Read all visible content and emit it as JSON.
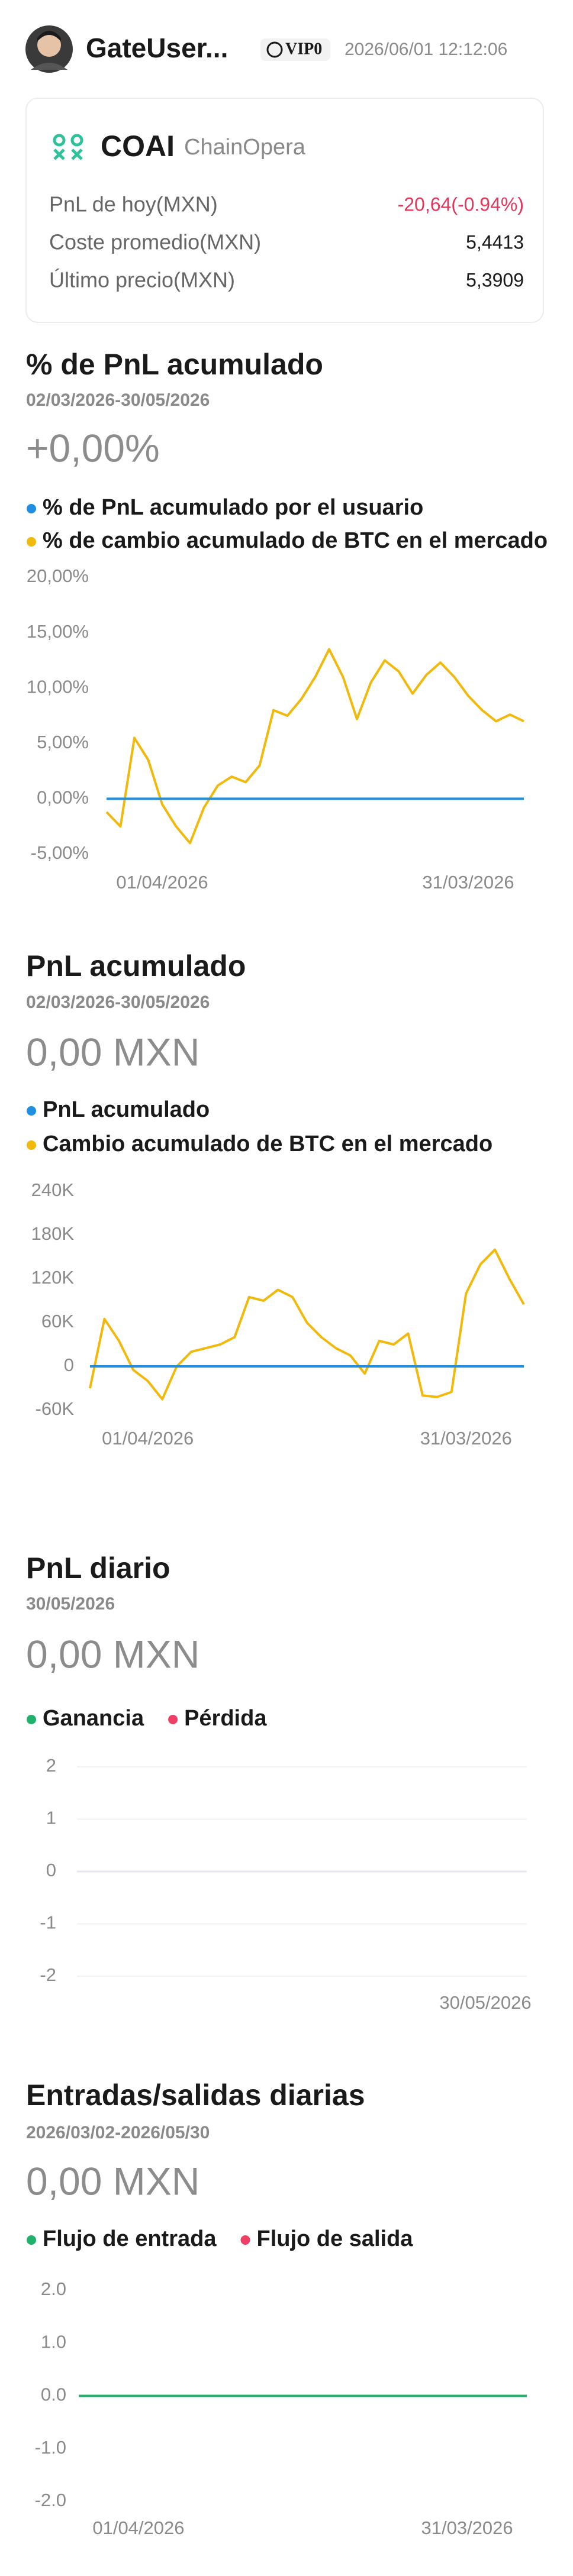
{
  "header": {
    "username": "GateUser...",
    "vip": "VIP0",
    "datetime": "2026/06/01 12:12:06"
  },
  "asset": {
    "symbol": "COAI",
    "name": "ChainOpera",
    "rows": [
      {
        "label": "PnL de hoy(MXN)",
        "value": "-20,64(-0.94%)"
      },
      {
        "label": "Coste promedio(MXN)",
        "value": "5,4413"
      },
      {
        "label": "Último precio(MXN)",
        "value": "5,3909"
      }
    ]
  },
  "chart_data": [
    {
      "type": "line",
      "title": "% de PnL acumulado",
      "subtitle": "02/03/2026-30/05/2026",
      "summary": "+0,00%",
      "categories": [
        null,
        null,
        null,
        null,
        "01/04/2026",
        null,
        null,
        null,
        null,
        null,
        null,
        null,
        null,
        null,
        null,
        null,
        null,
        null,
        null,
        null,
        null,
        null,
        null,
        null,
        null,
        null,
        "31/03/2026",
        null,
        null,
        null,
        null
      ],
      "series": [
        {
          "name": "% de PnL acumulado por el usuario",
          "color": "#1e8fe1",
          "values": [
            0,
            0,
            0,
            0,
            0,
            0,
            0,
            0,
            0,
            0,
            0,
            0,
            0,
            0,
            0,
            0,
            0,
            0,
            0,
            0,
            0,
            0,
            0,
            0,
            0,
            0,
            0,
            0,
            0,
            0,
            0
          ]
        },
        {
          "name": "% de cambio acumulado de BTC en el mercado",
          "color": "#f0b90b",
          "values": [
            -1.2,
            -2.5,
            5.5,
            3.5,
            -0.5,
            -2.5,
            -4,
            -0.8,
            1.2,
            2,
            1.5,
            3,
            8,
            7.5,
            9,
            11,
            13.5,
            11,
            7.2,
            10.5,
            12.5,
            11.5,
            9.5,
            11.2,
            12.3,
            11,
            9.3,
            8,
            7,
            7.6,
            7
          ]
        }
      ],
      "ylim": [
        -5,
        20
      ],
      "yticks": [
        {
          "value": 20,
          "label": "20,00%"
        },
        {
          "value": 15,
          "label": "15,00%"
        },
        {
          "value": 10,
          "label": "10,00%"
        },
        {
          "value": 5,
          "label": "5,00%"
        },
        {
          "value": 0,
          "label": "0,00%"
        },
        {
          "value": -5,
          "label": "-5,00%"
        }
      ],
      "grid": false
    },
    {
      "type": "line",
      "title": "PnL acumulado",
      "subtitle": "02/03/2026-30/05/2026",
      "summary": "0,00 MXN",
      "categories": [
        null,
        null,
        null,
        null,
        "01/04/2026",
        null,
        null,
        null,
        null,
        null,
        null,
        null,
        null,
        null,
        null,
        null,
        null,
        null,
        null,
        null,
        null,
        null,
        null,
        null,
        null,
        null,
        "31/03/2026",
        null,
        null,
        null,
        null
      ],
      "series": [
        {
          "name": "PnL acumulado",
          "color": "#1e8fe1",
          "values": [
            0,
            0,
            0,
            0,
            0,
            0,
            0,
            0,
            0,
            0,
            0,
            0,
            0,
            0,
            0,
            0,
            0,
            0,
            0,
            0,
            0,
            0,
            0,
            0,
            0,
            0,
            0,
            0,
            0,
            0,
            0
          ]
        },
        {
          "name": "Cambio acumulado de BTC en el mercado",
          "color": "#f0b90b",
          "values": [
            -30000,
            65000,
            35000,
            -5000,
            -20000,
            -45000,
            0,
            20000,
            25000,
            30000,
            40000,
            95000,
            90000,
            105000,
            95000,
            60000,
            40000,
            25000,
            15000,
            -10000,
            35000,
            30000,
            45000,
            -40000,
            -42000,
            -35000,
            100000,
            140000,
            160000,
            120000,
            85000
          ]
        }
      ],
      "ylim": [
        -60000,
        240000
      ],
      "yticks": [
        {
          "value": 240000,
          "label": "240K"
        },
        {
          "value": 180000,
          "label": "180K"
        },
        {
          "value": 120000,
          "label": "120K"
        },
        {
          "value": 60000,
          "label": "60K"
        },
        0,
        {
          "value": -60000,
          "label": "-60K"
        }
      ],
      "grid": false
    },
    {
      "type": "bar",
      "title": "PnL diario",
      "subtitle": "30/05/2026",
      "summary": "0,00 MXN",
      "categories": [
        "30/05/2026"
      ],
      "series": [
        {
          "name": "Ganancia",
          "color": "#20b26c",
          "values": [
            0
          ]
        },
        {
          "name": "Pérdida",
          "color": "#ef3f67",
          "values": [
            0
          ]
        }
      ],
      "ylim": [
        -2,
        2
      ],
      "yticks": [
        2,
        1,
        0,
        -1,
        -2
      ],
      "grid": true
    },
    {
      "type": "line",
      "title": "Entradas/salidas diarias",
      "subtitle": "2026/03/02-2026/05/30",
      "summary": "0,00 MXN",
      "categories": [
        null,
        null,
        null,
        null,
        "01/04/2026",
        null,
        null,
        null,
        null,
        null,
        null,
        null,
        null,
        null,
        null,
        null,
        null,
        null,
        null,
        null,
        null,
        null,
        null,
        null,
        null,
        null,
        "31/03/2026",
        null,
        null,
        null,
        null
      ],
      "series": [
        {
          "name": "Flujo de entrada",
          "color": "#20b26c",
          "values": [
            0,
            0,
            0,
            0,
            0,
            0,
            0,
            0,
            0,
            0,
            0,
            0,
            0,
            0,
            0,
            0,
            0,
            0,
            0,
            0,
            0,
            0,
            0,
            0,
            0,
            0,
            0,
            0,
            0,
            0,
            0
          ]
        },
        {
          "name": "Flujo de salida",
          "color": "#ef3f67",
          "values": [
            0,
            0,
            0,
            0,
            0,
            0,
            0,
            0,
            0,
            0,
            0,
            0,
            0,
            0,
            0,
            0,
            0,
            0,
            0,
            0,
            0,
            0,
            0,
            0,
            0,
            0,
            0,
            0,
            0,
            0,
            0
          ]
        }
      ],
      "ylim": [
        -2,
        2
      ],
      "yticks": [
        {
          "value": 2,
          "label": "2.0"
        },
        {
          "value": 1,
          "label": "1.0"
        },
        {
          "value": 0,
          "label": "0.0"
        },
        {
          "value": -1,
          "label": "-1.0"
        },
        {
          "value": -2,
          "label": "-2.0"
        }
      ],
      "grid": false
    }
  ]
}
